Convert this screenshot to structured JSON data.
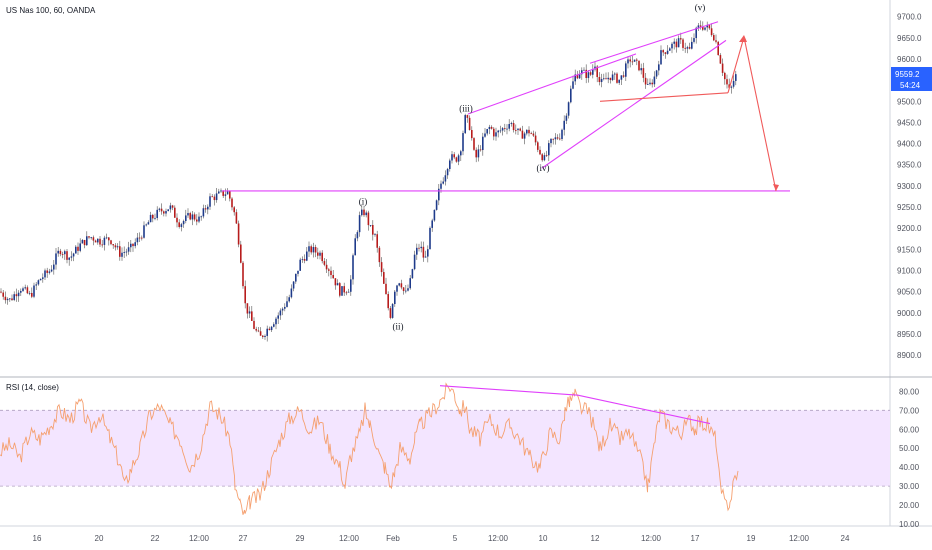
{
  "header": {
    "symbol_title": "US Nas 100, 60, OANDA",
    "rsi_title": "RSI (14, close)"
  },
  "price_box": {
    "last_price": "9559.2",
    "countdown": "54:24"
  },
  "colors": {
    "bull": "#1e3a8a",
    "bear": "#b71c1c",
    "wick": "#555555",
    "magenta": "#e040fb",
    "red_line": "#f05a5a",
    "rsi_line": "#f5a070",
    "rsi_band": "#f3e5ff",
    "last_price_bg": "#2962ff",
    "axis_text": "#50535e"
  },
  "chart_data": [
    {
      "type": "candlestick",
      "title": "US Nas 100, 60, OANDA",
      "ylim": [
        8860,
        9730
      ],
      "y_ticks": [
        "9700.0",
        "9650.0",
        "9600.0",
        "9550.0",
        "9500.0",
        "9450.0",
        "9400.0",
        "9350.0",
        "9300.0",
        "9250.0",
        "9200.0",
        "9150.0",
        "9100.0",
        "9050.0",
        "9000.0",
        "8950.0",
        "8900.0"
      ],
      "price_path": [
        [
          0,
          9050
        ],
        [
          10,
          9030
        ],
        [
          20,
          9060
        ],
        [
          30,
          9040
        ],
        [
          40,
          9080
        ],
        [
          50,
          9100
        ],
        [
          60,
          9150
        ],
        [
          70,
          9130
        ],
        [
          80,
          9160
        ],
        [
          90,
          9180
        ],
        [
          100,
          9170
        ],
        [
          110,
          9175
        ],
        [
          120,
          9140
        ],
        [
          130,
          9150
        ],
        [
          140,
          9180
        ],
        [
          150,
          9220
        ],
        [
          160,
          9240
        ],
        [
          170,
          9250
        ],
        [
          180,
          9210
        ],
        [
          190,
          9230
        ],
        [
          200,
          9220
        ],
        [
          210,
          9270
        ],
        [
          220,
          9280
        ],
        [
          228,
          9285
        ],
        [
          235,
          9230
        ],
        [
          240,
          9150
        ],
        [
          245,
          9020
        ],
        [
          250,
          8990
        ],
        [
          255,
          8960
        ],
        [
          260,
          8940
        ],
        [
          270,
          8970
        ],
        [
          280,
          9000
        ],
        [
          290,
          9040
        ],
        [
          300,
          9120
        ],
        [
          310,
          9150
        ],
        [
          320,
          9140
        ],
        [
          330,
          9100
        ],
        [
          340,
          9050
        ],
        [
          350,
          9060
        ],
        [
          355,
          9170
        ],
        [
          360,
          9230
        ],
        [
          365,
          9240
        ],
        [
          370,
          9200
        ],
        [
          375,
          9180
        ],
        [
          380,
          9110
        ],
        [
          385,
          9050
        ],
        [
          390,
          8990
        ],
        [
          395,
          9060
        ],
        [
          400,
          9080
        ],
        [
          405,
          9040
        ],
        [
          410,
          9070
        ],
        [
          415,
          9140
        ],
        [
          420,
          9160
        ],
        [
          425,
          9120
        ],
        [
          430,
          9190
        ],
        [
          435,
          9240
        ],
        [
          440,
          9300
        ],
        [
          445,
          9330
        ],
        [
          450,
          9370
        ],
        [
          455,
          9360
        ],
        [
          460,
          9380
        ],
        [
          465,
          9460
        ],
        [
          470,
          9440
        ],
        [
          475,
          9360
        ],
        [
          480,
          9390
        ],
        [
          485,
          9420
        ],
        [
          490,
          9440
        ],
        [
          495,
          9420
        ],
        [
          500,
          9430
        ],
        [
          510,
          9450
        ],
        [
          520,
          9420
        ],
        [
          530,
          9430
        ],
        [
          540,
          9380
        ],
        [
          545,
          9360
        ],
        [
          550,
          9400
        ],
        [
          560,
          9420
        ],
        [
          565,
          9460
        ],
        [
          570,
          9520
        ],
        [
          575,
          9560
        ],
        [
          580,
          9570
        ],
        [
          590,
          9560
        ],
        [
          595,
          9590
        ],
        [
          600,
          9540
        ],
        [
          610,
          9560
        ],
        [
          620,
          9550
        ],
        [
          630,
          9600
        ],
        [
          640,
          9580
        ],
        [
          648,
          9530
        ],
        [
          655,
          9560
        ],
        [
          660,
          9610
        ],
        [
          670,
          9630
        ],
        [
          680,
          9640
        ],
        [
          690,
          9620
        ],
        [
          695,
          9660
        ],
        [
          700,
          9680
        ],
        [
          710,
          9670
        ],
        [
          715,
          9650
        ],
        [
          720,
          9600
        ],
        [
          725,
          9550
        ],
        [
          730,
          9520
        ],
        [
          735,
          9560
        ],
        [
          738,
          9559
        ]
      ],
      "wave_labels": [
        {
          "label": "(i)",
          "x": 363,
          "price": 9256
        },
        {
          "label": "(ii)",
          "x": 398,
          "price": 8960
        },
        {
          "label": "(iii)",
          "x": 466,
          "price": 9476
        },
        {
          "label": "(iv)",
          "x": 543,
          "price": 9335
        },
        {
          "label": "(v)",
          "x": 700,
          "price": 9715
        }
      ],
      "lines": {
        "support": {
          "x1": 222,
          "x2": 790,
          "price": 9288
        },
        "upper_channel": [
          [
            468,
            9470
          ],
          [
            636,
            9612
          ]
        ],
        "lower_channel": [
          [
            542,
            9342
          ],
          [
            726,
            9644
          ]
        ],
        "wedge_top": [
          [
            590,
            9590
          ],
          [
            718,
            9688
          ]
        ],
        "wedge_bottom": [
          [
            600,
            9500
          ],
          [
            728,
            9520
          ]
        ],
        "projection": [
          [
            728,
            9520
          ],
          [
            744,
            9652
          ],
          [
            776,
            9288
          ]
        ]
      }
    },
    {
      "type": "line",
      "title": "RSI (14, close)",
      "ylim": [
        10,
        86
      ],
      "y_ticks": [
        "80.00",
        "70.00",
        "60.00",
        "50.00",
        "40.00",
        "30.00",
        "20.00",
        "10.00"
      ],
      "bands": {
        "upper": 70,
        "lower": 30
      },
      "values": [
        [
          0,
          48
        ],
        [
          10,
          52
        ],
        [
          20,
          45
        ],
        [
          30,
          58
        ],
        [
          40,
          55
        ],
        [
          50,
          62
        ],
        [
          60,
          70
        ],
        [
          70,
          65
        ],
        [
          80,
          74
        ],
        [
          90,
          60
        ],
        [
          100,
          68
        ],
        [
          110,
          55
        ],
        [
          120,
          42
        ],
        [
          125,
          30
        ],
        [
          130,
          38
        ],
        [
          140,
          50
        ],
        [
          150,
          68
        ],
        [
          160,
          72
        ],
        [
          170,
          62
        ],
        [
          180,
          55
        ],
        [
          190,
          40
        ],
        [
          200,
          50
        ],
        [
          210,
          72
        ],
        [
          220,
          68
        ],
        [
          230,
          55
        ],
        [
          235,
          30
        ],
        [
          240,
          20
        ],
        [
          245,
          14
        ],
        [
          250,
          22
        ],
        [
          260,
          25
        ],
        [
          270,
          40
        ],
        [
          280,
          55
        ],
        [
          290,
          66
        ],
        [
          300,
          70
        ],
        [
          310,
          60
        ],
        [
          320,
          65
        ],
        [
          330,
          50
        ],
        [
          340,
          40
        ],
        [
          345,
          30
        ],
        [
          350,
          45
        ],
        [
          360,
          58
        ],
        [
          365,
          70
        ],
        [
          370,
          62
        ],
        [
          375,
          55
        ],
        [
          380,
          45
        ],
        [
          385,
          40
        ],
        [
          390,
          30
        ],
        [
          395,
          38
        ],
        [
          400,
          50
        ],
        [
          410,
          45
        ],
        [
          415,
          55
        ],
        [
          420,
          62
        ],
        [
          430,
          68
        ],
        [
          440,
          75
        ],
        [
          450,
          83
        ],
        [
          455,
          78
        ],
        [
          460,
          70
        ],
        [
          465,
          72
        ],
        [
          470,
          60
        ],
        [
          480,
          55
        ],
        [
          490,
          65
        ],
        [
          500,
          58
        ],
        [
          510,
          62
        ],
        [
          520,
          55
        ],
        [
          530,
          45
        ],
        [
          540,
          40
        ],
        [
          550,
          58
        ],
        [
          560,
          55
        ],
        [
          565,
          70
        ],
        [
          570,
          75
        ],
        [
          575,
          78
        ],
        [
          580,
          72
        ],
        [
          590,
          68
        ],
        [
          600,
          50
        ],
        [
          610,
          62
        ],
        [
          620,
          55
        ],
        [
          630,
          58
        ],
        [
          640,
          45
        ],
        [
          648,
          30
        ],
        [
          655,
          55
        ],
        [
          660,
          68
        ],
        [
          670,
          62
        ],
        [
          680,
          58
        ],
        [
          690,
          65
        ],
        [
          695,
          60
        ],
        [
          700,
          64
        ],
        [
          708,
          62
        ],
        [
          712,
          58
        ],
        [
          716,
          55
        ],
        [
          720,
          30
        ],
        [
          725,
          20
        ],
        [
          730,
          22
        ],
        [
          735,
          35
        ],
        [
          738,
          38
        ]
      ],
      "divergence_lines": [
        [
          [
            440,
            83
          ],
          [
            578,
            78
          ],
          [
            710,
            63
          ]
        ]
      ]
    }
  ],
  "x_axis": {
    "ticks": [
      {
        "x": 37,
        "label": "16"
      },
      {
        "x": 99,
        "label": "20"
      },
      {
        "x": 155,
        "label": "22"
      },
      {
        "x": 199,
        "label": "12:00"
      },
      {
        "x": 243,
        "label": "27"
      },
      {
        "x": 300,
        "label": "29"
      },
      {
        "x": 349,
        "label": "12:00"
      },
      {
        "x": 393,
        "label": "Feb"
      },
      {
        "x": 455,
        "label": "5"
      },
      {
        "x": 498,
        "label": "12:00"
      },
      {
        "x": 543,
        "label": "10"
      },
      {
        "x": 595,
        "label": "12"
      },
      {
        "x": 651,
        "label": "12:00"
      },
      {
        "x": 695,
        "label": "17"
      },
      {
        "x": 751,
        "label": "19"
      },
      {
        "x": 799,
        "label": "12:00"
      },
      {
        "x": 845,
        "label": "24"
      }
    ]
  }
}
